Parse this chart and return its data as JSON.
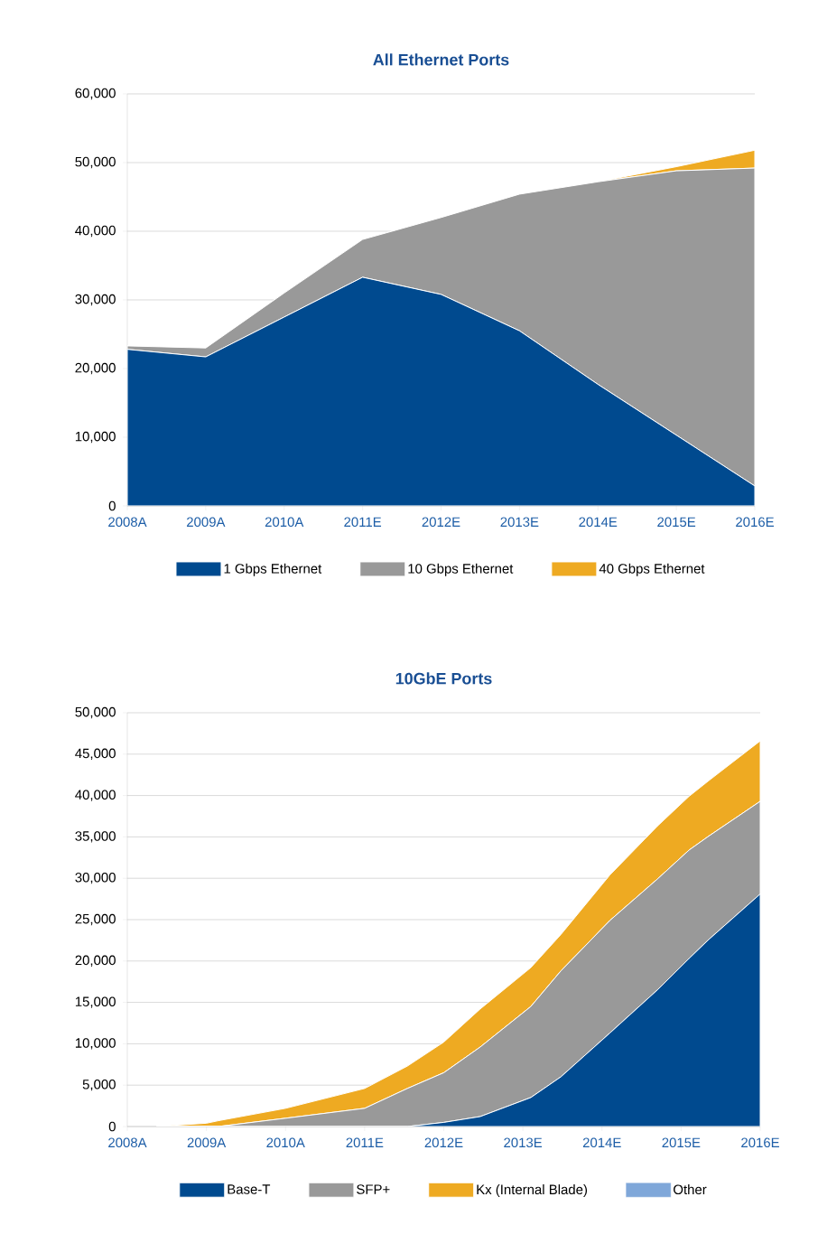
{
  "chart_data": [
    {
      "type": "area",
      "title": "All Ethernet Ports",
      "stacked": true,
      "grid": "y",
      "legend": "bottom",
      "categories": [
        "2008A",
        "2009A",
        "2010A",
        "2011E",
        "2012E",
        "2013E",
        "2014E",
        "2015E",
        "2016E"
      ],
      "ylim": [
        0,
        60000
      ],
      "yticks": [
        0,
        {
          "value": 10000,
          "label": "10,000"
        },
        {
          "value": 20000,
          "label": "20,000"
        },
        {
          "value": 30000,
          "label": "30,000"
        },
        {
          "value": 40000,
          "label": "40,000"
        },
        {
          "value": 50000,
          "label": "50,000"
        },
        {
          "value": 60000,
          "label": "60,000"
        }
      ],
      "series": [
        {
          "name": "1 Gbps Ethernet",
          "color": "#004a8f",
          "values": [
            22800,
            21700,
            27500,
            33300,
            30800,
            25500,
            17700,
            10300,
            2900
          ]
        },
        {
          "name": "10 Gbps Ethernet",
          "color": "#999999",
          "values": [
            500,
            1300,
            3500,
            5500,
            11200,
            19900,
            29500,
            38500,
            46300
          ]
        },
        {
          "name": "40 Gbps Ethernet",
          "color": "#eeaa22",
          "values": [
            0,
            0,
            0,
            0,
            0,
            0,
            0,
            600,
            2600
          ]
        }
      ]
    },
    {
      "type": "area",
      "title": "10GbE Ports",
      "stacked": true,
      "grid": "y",
      "legend": "bottom",
      "x": [
        2008.37,
        2009.0,
        2009.15,
        2010.0,
        2011.0,
        2011.54,
        2012.0,
        2012.46,
        2013.1,
        2013.48,
        2014.1,
        2014.7,
        2015.1,
        2015.35,
        2016.0
      ],
      "xlim": [
        2008,
        2016
      ],
      "xticks": [
        {
          "value": 2008,
          "label": "2008A"
        },
        {
          "value": 2009,
          "label": "2009A"
        },
        {
          "value": 2010,
          "label": "2010A"
        },
        {
          "value": 2011,
          "label": "2011E"
        },
        {
          "value": 2012,
          "label": "2012E"
        },
        {
          "value": 2013,
          "label": "2013E"
        },
        {
          "value": 2014,
          "label": "2014E"
        },
        {
          "value": 2015,
          "label": "2015E"
        },
        {
          "value": 2016,
          "label": "2016E"
        }
      ],
      "ylim": [
        0,
        50000
      ],
      "yticks": [
        0,
        {
          "value": 5000,
          "label": "5,000"
        },
        {
          "value": 10000,
          "label": "10,000"
        },
        {
          "value": 15000,
          "label": "15,000"
        },
        {
          "value": 20000,
          "label": "20,000"
        },
        {
          "value": 25000,
          "label": "25,000"
        },
        {
          "value": 30000,
          "label": "30,000"
        },
        {
          "value": 35000,
          "label": "35,000"
        },
        {
          "value": 40000,
          "label": "40,000"
        },
        {
          "value": 45000,
          "label": "45,000"
        },
        {
          "value": 50000,
          "label": "50,000"
        }
      ],
      "series": [
        {
          "name": "Base-T",
          "color": "#004a8f",
          "values": [
            0,
            0,
            0,
            0,
            0,
            0,
            500,
            1200,
            3500,
            6000,
            11300,
            16500,
            20300,
            22600,
            28100
          ]
        },
        {
          "name": "SFP+",
          "color": "#999999",
          "values": [
            0,
            0,
            0,
            1000,
            2200,
            4600,
            6000,
            8400,
            11000,
            12800,
            13600,
            13400,
            13100,
            12500,
            11200
          ]
        },
        {
          "name": "Kx (Internal Blade)",
          "color": "#eeaa22",
          "values": [
            0,
            400,
            700,
            1200,
            2400,
            2700,
            3700,
            4600,
            4700,
            4400,
            5500,
            6400,
            6500,
            6700,
            7300
          ]
        },
        {
          "name": "Other",
          "color": "#7fa7d9",
          "values": [
            null,
            null,
            null,
            null,
            null,
            null,
            null,
            null,
            null,
            null,
            null,
            null,
            null,
            null,
            null
          ]
        }
      ]
    }
  ]
}
